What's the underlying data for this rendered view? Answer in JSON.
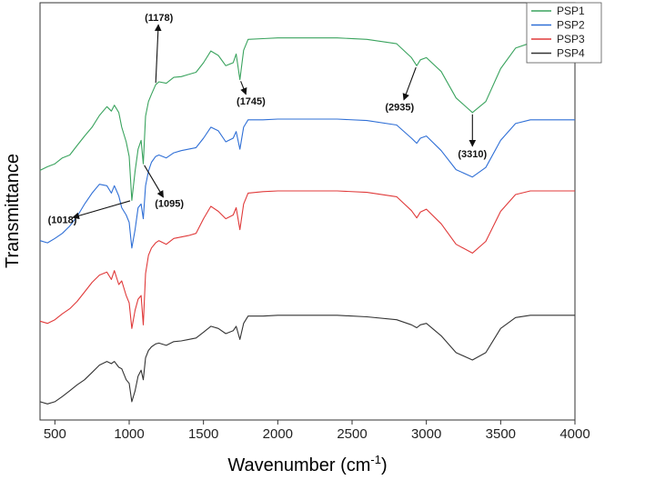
{
  "chart_data": {
    "type": "line",
    "title": "",
    "xlabel": "Wavenumber (cm",
    "xlabel_sup": "-1",
    "xlabel_end": ")",
    "ylabel": "Transmittance",
    "xlim": [
      400,
      4000
    ],
    "xticks": [
      "500",
      "1000",
      "1500",
      "2000",
      "2500",
      "3000",
      "3500",
      "4000"
    ],
    "yticks_shown": false,
    "grid": false,
    "legend_position": "top-right",
    "colors": {
      "PSP1": "#3aa35e",
      "PSP2": "#2f6fd6",
      "PSP3": "#e03a3a",
      "PSP4": "#333333"
    },
    "series": [
      {
        "name": "PSP1",
        "x": [
          400,
          450,
          500,
          550,
          600,
          650,
          700,
          750,
          800,
          850,
          880,
          900,
          930,
          950,
          980,
          1000,
          1018,
          1040,
          1060,
          1080,
          1095,
          1110,
          1130,
          1150,
          1178,
          1200,
          1250,
          1300,
          1350,
          1400,
          1450,
          1500,
          1550,
          1600,
          1650,
          1700,
          1720,
          1745,
          1770,
          1800,
          1900,
          2000,
          2200,
          2400,
          2600,
          2800,
          2900,
          2935,
          2960,
          3000,
          3100,
          3200,
          3310,
          3400,
          3500,
          3600,
          3700,
          3800,
          4000
        ],
        "y": [
          13.1,
          13.6,
          14.0,
          14.8,
          15.2,
          16.5,
          17.8,
          19.0,
          20.6,
          21.8,
          21.2,
          22.0,
          21.0,
          19.0,
          17.0,
          15.0,
          9.0,
          13.0,
          16.0,
          17.2,
          14.0,
          20.5,
          22.5,
          23.5,
          24.8,
          25.2,
          25.0,
          25.8,
          25.9,
          26.2,
          26.5,
          27.8,
          29.4,
          28.8,
          27.4,
          27.8,
          29.0,
          25.5,
          29.5,
          31.0,
          31.1,
          31.2,
          31.2,
          31.2,
          31.0,
          30.4,
          28.5,
          27.4,
          28.2,
          28.5,
          26.6,
          23.0,
          21.0,
          22.5,
          27.0,
          29.8,
          30.5,
          30.6,
          30.6
        ]
      },
      {
        "name": "PSP2",
        "x": [
          400,
          450,
          500,
          550,
          600,
          650,
          700,
          750,
          800,
          850,
          880,
          900,
          930,
          950,
          980,
          1000,
          1018,
          1040,
          1060,
          1080,
          1095,
          1110,
          1130,
          1150,
          1178,
          1200,
          1250,
          1300,
          1350,
          1400,
          1450,
          1500,
          1550,
          1600,
          1650,
          1700,
          1720,
          1745,
          1770,
          1800,
          1900,
          2000,
          2200,
          2400,
          2600,
          2800,
          2900,
          2935,
          2960,
          3000,
          3100,
          3200,
          3310,
          3400,
          3500,
          3600,
          3700,
          3800,
          4000
        ],
        "y": [
          3.5,
          3.2,
          3.8,
          4.5,
          5.5,
          6.8,
          8.5,
          10.0,
          11.2,
          11.0,
          10.0,
          11.0,
          9.6,
          8.0,
          7.0,
          6.0,
          2.5,
          5.0,
          8.0,
          8.5,
          6.5,
          11.0,
          13.0,
          14.2,
          15.0,
          15.2,
          14.8,
          15.5,
          15.8,
          16.0,
          16.2,
          17.5,
          19.0,
          18.5,
          17.0,
          17.5,
          18.4,
          16.0,
          19.0,
          20.0,
          20.0,
          20.1,
          20.1,
          20.1,
          19.9,
          19.3,
          17.5,
          16.8,
          17.5,
          17.8,
          15.8,
          13.2,
          12.2,
          13.5,
          17.2,
          19.5,
          20.0,
          20.0,
          20.0
        ]
      },
      {
        "name": "PSP3",
        "x": [
          400,
          450,
          500,
          550,
          600,
          650,
          700,
          750,
          800,
          850,
          880,
          900,
          930,
          950,
          980,
          1000,
          1018,
          1040,
          1060,
          1080,
          1095,
          1110,
          1130,
          1150,
          1178,
          1200,
          1250,
          1300,
          1350,
          1400,
          1450,
          1500,
          1550,
          1600,
          1650,
          1700,
          1720,
          1745,
          1770,
          1800,
          1900,
          2000,
          2200,
          2400,
          2600,
          2800,
          2900,
          2935,
          2960,
          3000,
          3100,
          3200,
          3310,
          3400,
          3500,
          3600,
          3700,
          3800,
          4000
        ],
        "y": [
          -7.5,
          -7.8,
          -7.3,
          -6.5,
          -5.8,
          -4.8,
          -3.5,
          -2.2,
          -1.2,
          -0.8,
          -1.8,
          -0.6,
          -2.5,
          -2.0,
          -4.0,
          -5.0,
          -8.5,
          -6.0,
          -4.5,
          -4.0,
          -8.0,
          -1.0,
          1.5,
          2.5,
          3.2,
          3.5,
          3.0,
          3.8,
          4.0,
          4.2,
          4.5,
          6.5,
          8.2,
          7.5,
          6.5,
          7.0,
          8.0,
          5.0,
          8.5,
          10.0,
          10.2,
          10.3,
          10.3,
          10.3,
          10.1,
          9.5,
          7.6,
          6.6,
          7.4,
          7.8,
          5.8,
          3.0,
          1.8,
          3.4,
          7.5,
          9.8,
          10.3,
          10.3,
          10.3
        ]
      },
      {
        "name": "PSP4",
        "x": [
          400,
          450,
          500,
          550,
          600,
          650,
          700,
          750,
          800,
          850,
          880,
          900,
          930,
          950,
          980,
          1000,
          1018,
          1040,
          1060,
          1080,
          1095,
          1110,
          1130,
          1150,
          1178,
          1200,
          1250,
          1300,
          1350,
          1400,
          1450,
          1500,
          1550,
          1600,
          1650,
          1700,
          1720,
          1745,
          1770,
          1800,
          1900,
          2000,
          2200,
          2400,
          2600,
          2800,
          2900,
          2935,
          2960,
          3000,
          3100,
          3200,
          3310,
          3400,
          3500,
          3600,
          3700,
          3800,
          4000
        ],
        "y": [
          -18.5,
          -18.8,
          -18.5,
          -17.8,
          -17.0,
          -16.2,
          -15.5,
          -14.5,
          -13.5,
          -13.0,
          -13.3,
          -13.0,
          -13.8,
          -14.0,
          -15.5,
          -16.0,
          -18.5,
          -17.0,
          -15.0,
          -14.2,
          -15.5,
          -12.5,
          -11.5,
          -11.0,
          -10.6,
          -10.5,
          -10.8,
          -10.3,
          -10.2,
          -10.0,
          -9.8,
          -9.0,
          -8.2,
          -8.5,
          -9.2,
          -8.8,
          -8.2,
          -10.0,
          -7.8,
          -6.8,
          -6.8,
          -6.7,
          -6.7,
          -6.7,
          -6.9,
          -7.3,
          -8.0,
          -8.4,
          -8.0,
          -7.8,
          -9.5,
          -11.8,
          -12.8,
          -11.8,
          -8.5,
          -7.0,
          -6.7,
          -6.7,
          -6.7
        ]
      }
    ],
    "ylim": [
      -21.0,
      36.0
    ],
    "annotations": [
      {
        "label": "(1178)",
        "series": "PSP1",
        "x": 1178,
        "text_x": 1200,
        "text_y": 34.0
      },
      {
        "label": "(1745)",
        "series": "PSP1",
        "x": 1745,
        "text_x": 1820,
        "text_y": 22.6
      },
      {
        "label": "(1018)",
        "series": "PSP1",
        "x": 1018,
        "text_x": 550,
        "text_y": 6.4
      },
      {
        "label": "(1095)",
        "series": "PSP1",
        "x": 1095,
        "text_x": 1270,
        "text_y": 8.6
      },
      {
        "label": "(2935)",
        "series": "PSP1",
        "x": 2935,
        "text_x": 2820,
        "text_y": 21.8
      },
      {
        "label": "(3310)",
        "series": "PSP1",
        "x": 3310,
        "text_x": 3310,
        "text_y": 15.4
      }
    ]
  }
}
